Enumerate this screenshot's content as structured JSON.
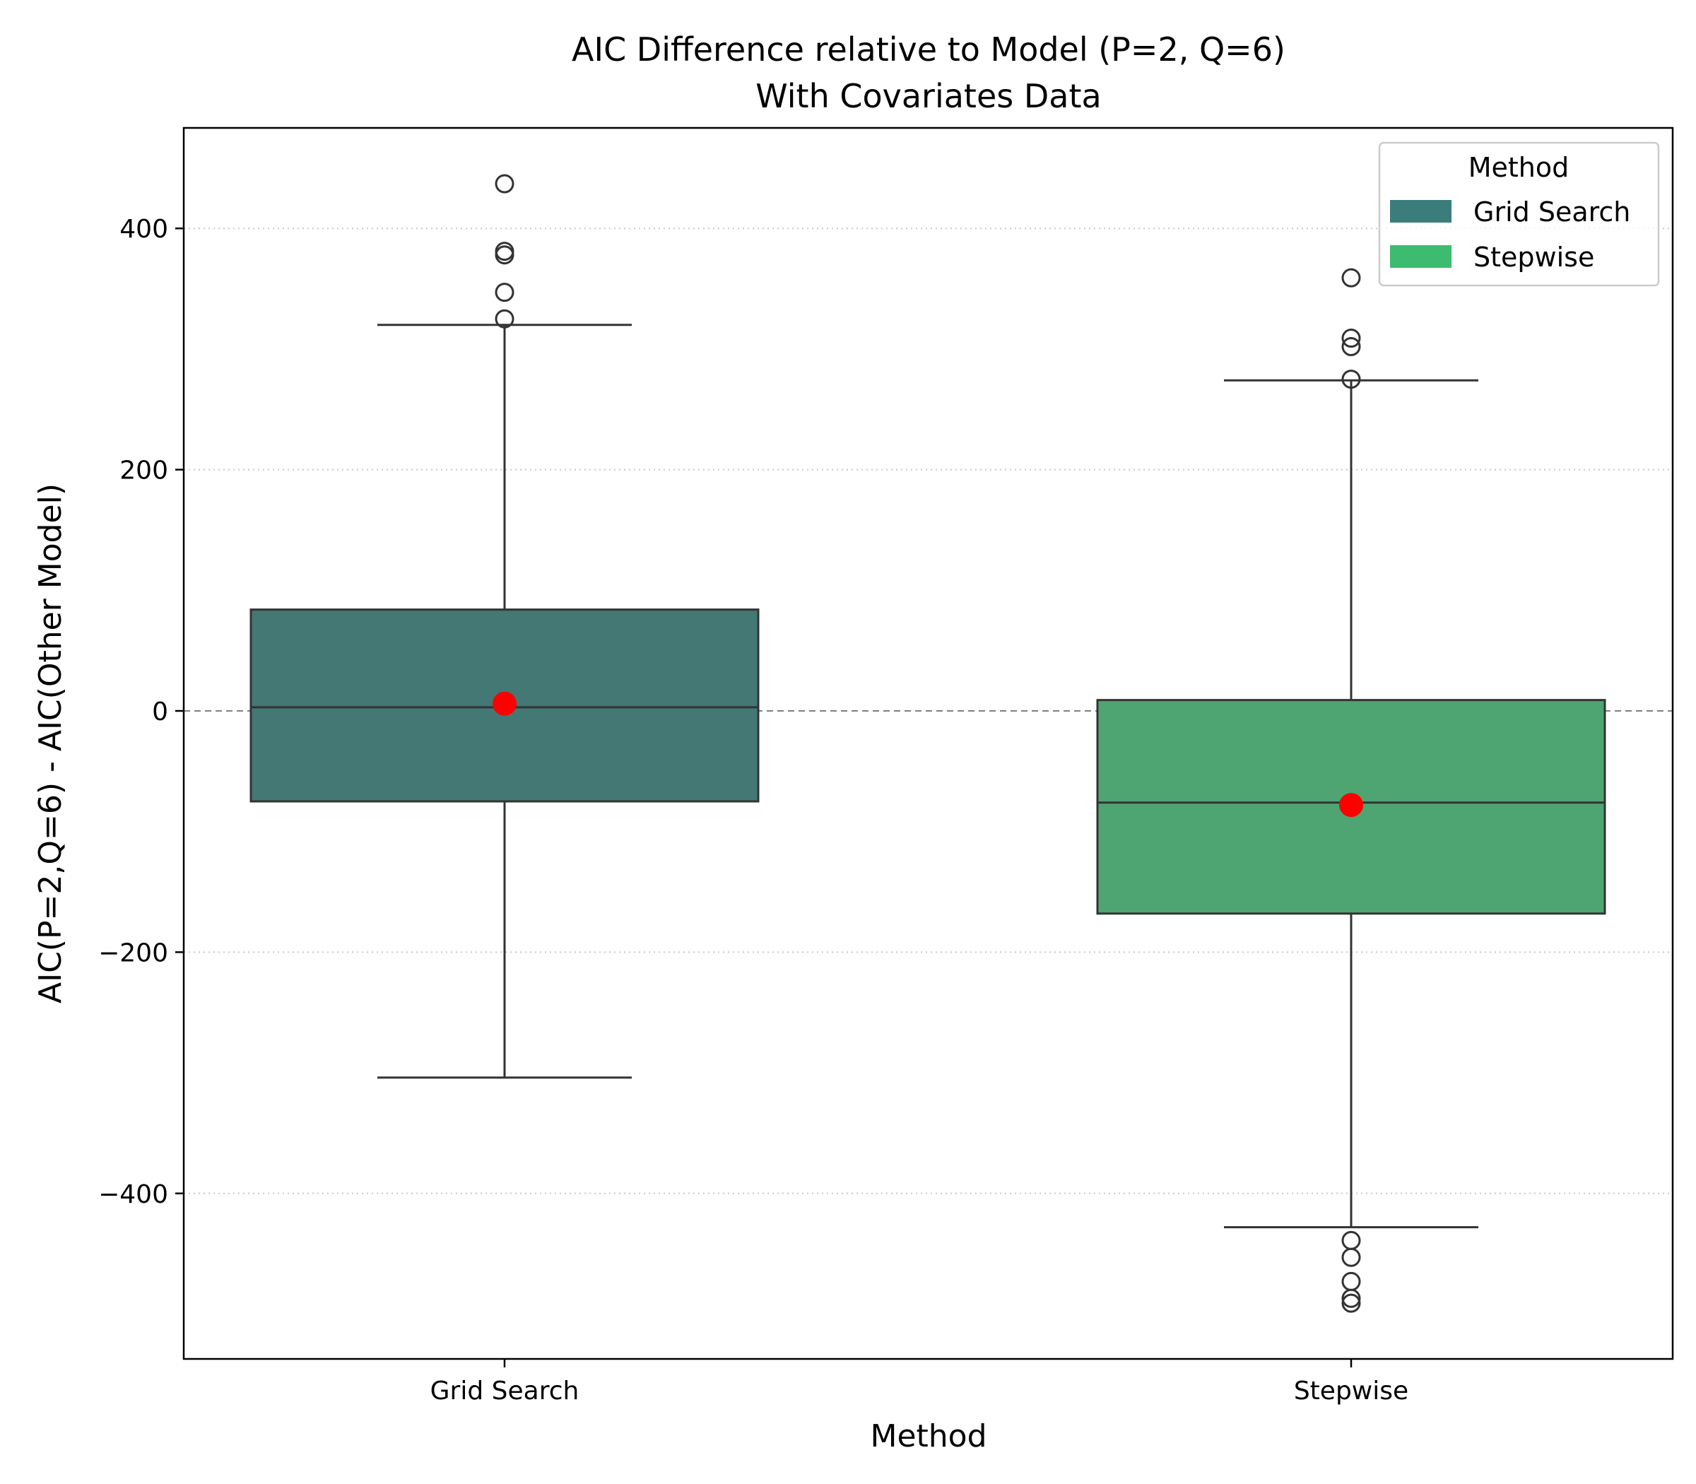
{
  "chart_data": {
    "type": "box",
    "title": "AIC Difference relative to Model (P=2, Q=6)",
    "subtitle": "With Covariates Data",
    "xlabel": "Method",
    "ylabel": "AIC(P=2,Q=6) - AIC(Other Model)",
    "ylim": [
      -537,
      483
    ],
    "yticks": [
      400,
      200,
      0,
      -200,
      -400
    ],
    "ytick_labels": [
      "400",
      "200",
      "0",
      "−200",
      "−400"
    ],
    "grid": "horizontal dotted",
    "reference_line": 0,
    "legend": {
      "title": "Method",
      "placement": "top-right",
      "entries": [
        {
          "label": "Grid Search",
          "color": "#3b7d7b"
        },
        {
          "label": "Stepwise",
          "color": "#3dbb70"
        }
      ]
    },
    "categories": [
      "Grid Search",
      "Stepwise"
    ],
    "boxes": [
      {
        "name": "Grid Search",
        "color": "#437874",
        "whisker_low": -304,
        "q1": -75,
        "median": 3,
        "q3": 84,
        "whisker_high": 320,
        "mean": 6,
        "outliers": [
          437,
          381,
          378,
          347,
          325
        ]
      },
      {
        "name": "Stepwise",
        "color": "#4ea571",
        "whisker_low": -428,
        "q1": -168,
        "median": -76,
        "q3": 9,
        "whisker_high": 274,
        "mean": -78,
        "outliers": [
          359,
          309,
          302,
          275,
          -439,
          -453,
          -473,
          -487,
          -491
        ]
      }
    ],
    "mean_marker_color": "#ff0000"
  }
}
